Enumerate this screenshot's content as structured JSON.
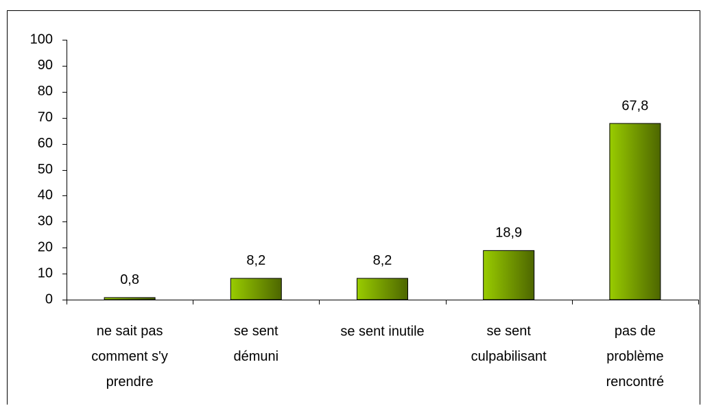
{
  "chart_data": {
    "type": "bar",
    "categories": [
      "ne sait pas\ncomment s'y\nprendre",
      "se sent\ndémuni",
      "se sent inutile",
      "se sent\nculpabilisant",
      "pas de\nproblème\nrencontré"
    ],
    "values": [
      0.8,
      8.2,
      8.2,
      18.9,
      67.8
    ],
    "value_labels": [
      "0,8",
      "8,2",
      "8,2",
      "18,9",
      "67,8"
    ],
    "color": "#99cc00",
    "ylim": [
      0,
      100
    ],
    "yticks": [
      0,
      10,
      20,
      30,
      40,
      50,
      60,
      70,
      80,
      90,
      100
    ],
    "grid": false
  }
}
